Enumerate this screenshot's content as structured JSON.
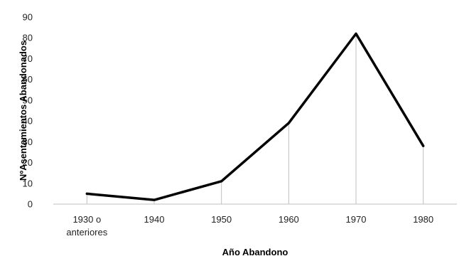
{
  "chart_data": {
    "type": "line",
    "title": "",
    "xlabel": "Año Abandono",
    "ylabel": "NºAsentamientos Abandonados",
    "categories": [
      [
        "1930 o",
        "anteriores"
      ],
      [
        "1940"
      ],
      [
        "1950"
      ],
      [
        "1960"
      ],
      [
        "1970"
      ],
      [
        "1980"
      ]
    ],
    "series": [
      {
        "values": [
          5,
          2,
          11,
          39,
          82,
          28
        ],
        "color": "#000000"
      }
    ],
    "ylim": [
      0,
      90
    ],
    "yticks": [
      0,
      10,
      20,
      30,
      40,
      50,
      60,
      70,
      80,
      90
    ],
    "drop_lines": true,
    "grid": false,
    "legend": "none"
  }
}
